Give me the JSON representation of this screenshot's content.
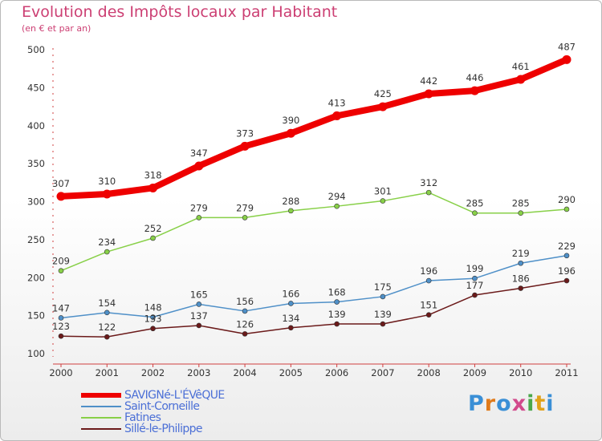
{
  "title": "Evolution des Impôts locaux par Habitant",
  "subtitle": "(en € et par an)",
  "logo": {
    "letters": [
      "P",
      "r",
      "o",
      "x",
      "i",
      "t",
      "i"
    ],
    "colors": [
      "#3a8fd6",
      "#e07a1a",
      "#3a8fd6",
      "#d24a8c",
      "#4aa84a",
      "#e0a21a",
      "#3a8fd6"
    ]
  },
  "chart_data": {
    "type": "line",
    "x": [
      "2000",
      "2001",
      "2002",
      "2003",
      "2004",
      "2005",
      "2006",
      "2007",
      "2008",
      "2009",
      "2010",
      "2011"
    ],
    "ylim": [
      100,
      500
    ],
    "yticks": [
      "100",
      "150",
      "200",
      "250",
      "300",
      "350",
      "400",
      "450",
      "500"
    ],
    "grid": false,
    "legend_position": "bottom-left",
    "series": [
      {
        "name": "SAVIGNé-L'ÉVêQUE",
        "color": "#ee0000",
        "values": [
          307,
          310,
          318,
          347,
          373,
          390,
          413,
          425,
          442,
          446,
          461,
          487
        ]
      },
      {
        "name": "Saint-Corneille",
        "color": "#4f90c8",
        "values": [
          147,
          154,
          148,
          165,
          156,
          166,
          168,
          175,
          196,
          199,
          219,
          229
        ]
      },
      {
        "name": "Fatines",
        "color": "#88d048",
        "values": [
          209,
          234,
          252,
          279,
          279,
          288,
          294,
          301,
          312,
          285,
          285,
          290
        ]
      },
      {
        "name": "Sillé-le-Philippe",
        "color": "#6b1a1a",
        "values": [
          123,
          122,
          133,
          137,
          126,
          134,
          139,
          139,
          151,
          177,
          186,
          196
        ]
      }
    ]
  }
}
